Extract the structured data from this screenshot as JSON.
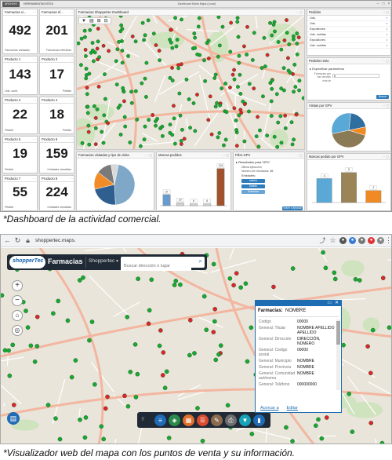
{
  "dashboard": {
    "ribbon_tabs": [
      "ARCHIVO",
      "HERRAMIENTAS",
      "VISTA"
    ],
    "window_title": "Dashboard Maria Mapa (Local)",
    "kpis": [
      {
        "title": "Farmacias vi...",
        "value": "492",
        "subtitle": "Farmacias visitadas"
      },
      {
        "title": "Farmacias ef...",
        "value": "201",
        "subtitle": "Farmacias efectivas"
      },
      {
        "title": "Producto 1",
        "value": "143",
        "subtitle": "Uds. suelt."
      },
      {
        "title": "Producto 2",
        "value": "17",
        "subtitle": "Pedido"
      },
      {
        "title": "Producto 3",
        "value": "22",
        "subtitle": "Pedido"
      },
      {
        "title": "Producto 4",
        "value": "18",
        "subtitle": "Pedido"
      },
      {
        "title": "Producto 5",
        "value": "19",
        "subtitle": "Pedido"
      },
      {
        "title": "Producto 6",
        "value": "159",
        "subtitle": "Unidades vendidas"
      },
      {
        "title": "Producto 7",
        "value": "55",
        "subtitle": "Pedido"
      },
      {
        "title": "Producto 8",
        "value": "224",
        "subtitle": "Unidades vendidas"
      }
    ],
    "map_panel_title": "Farmacias Shoppertec Dashboard",
    "pedidos_panel": {
      "title": "Pedidos",
      "rows": [
        "Uds.",
        "Uds.",
        "Expositores",
        "Uds. sueltas",
        "Expositores",
        "Uds. sueltas"
      ]
    },
    "pedidos_resto": {
      "title": "Pedidos resto",
      "subtitle": "Especificar parámetros",
      "field_labels": [
        "Farmacias que han vendido",
        "más de"
      ],
      "field_value": "0",
      "button": "Buscar"
    },
    "visitas_gpv": {
      "title": "Visitas por GPV"
    },
    "pie_panel": {
      "title": "Farmacias visitadas y tipo de visita"
    },
    "marcas_pedidos": {
      "title": "Marcas pedidos"
    },
    "filtro_gpv": {
      "title": "Filtro GPV",
      "results_title": "Resultados para 'GPV'",
      "line1": "Última ejecución",
      "line2_label": "Número de resultados:",
      "line2_value": "10",
      "entities_label": "Entidades:",
      "entities": [
        "Madrid",
        "Distrito",
        "Subsector"
      ],
      "run_button": "Volver a ejecutar"
    },
    "marcas_gpv": {
      "title": "Marcas pedido por GPV"
    }
  },
  "caption_top": "*Dashboard de la actividad comercial.",
  "caption_bottom": "*Visualizador web del mapa con los puntos de venta y su información.",
  "browser": {
    "url": "shoppertec.maps."
  },
  "webapp": {
    "logo": "shopperTec",
    "app_name": "Farmacias",
    "brand": "Shoppertec",
    "search_placeholder": "Buscar dirección o lugar",
    "zoom_in": "+",
    "zoom_out": "−",
    "popup": {
      "title_label": "Farmacias:",
      "title_value": "NOMBRE",
      "rows": [
        {
          "k": "Codigo",
          "v": "00000"
        },
        {
          "k": "General: Titular",
          "v": "NOMBRE APELLIDO APELLIDO"
        },
        {
          "k": "General: Dirección",
          "v": "DIRECCIÓN, NÚMERO"
        },
        {
          "k": "General: Código postal",
          "v": "00000"
        },
        {
          "k": "General: Municipio",
          "v": "NOMBRE"
        },
        {
          "k": "General: Provincia",
          "v": "NOMBRE"
        },
        {
          "k": "General: Comunidad autónoma",
          "v": "NOMBRE"
        },
        {
          "k": "General: Teléfono",
          "v": "000000000"
        }
      ],
      "actions": [
        "Acercar a",
        "Editar"
      ]
    }
  },
  "chart_data": [
    {
      "type": "pie",
      "title": "Farmacias visitadas y tipo de visita",
      "categories": [
        "",
        "",
        "",
        "",
        ""
      ],
      "values": [
        46,
        22,
        14,
        12,
        6
      ],
      "colors": [
        "#7fa7c8",
        "#2f5f8f",
        "#f28c28",
        "#7a7a7a",
        "#d9d9d9"
      ]
    },
    {
      "type": "bar",
      "title": "Marcas pedidos",
      "categories": [
        "",
        "",
        "",
        "",
        ""
      ],
      "values": [
        37,
        10,
        6,
        6,
        124
      ],
      "data_labels": [
        "37",
        "10",
        "6",
        "6",
        "124"
      ],
      "colors": [
        "#6a9bcf",
        "#d0d0d0",
        "#d0d0d0",
        "#d0d0d0",
        "#a0522d"
      ]
    },
    {
      "type": "pie",
      "title": "Visitas por GPV",
      "categories": [
        "",
        "",
        "",
        ""
      ],
      "values": [
        42,
        30,
        20,
        8
      ],
      "colors": [
        "#8a7a55",
        "#5aa8d6",
        "#2f6fa0",
        "#f08a24"
      ]
    },
    {
      "type": "bar",
      "title": "Marcas pedido por GPV",
      "categories": [
        "",
        "",
        ""
      ],
      "values": [
        4,
        5,
        2
      ],
      "data_labels": [
        "4",
        "5",
        "2"
      ],
      "colors": [
        "#5aa8d6",
        "#9a8458",
        "#f08a24"
      ]
    }
  ]
}
